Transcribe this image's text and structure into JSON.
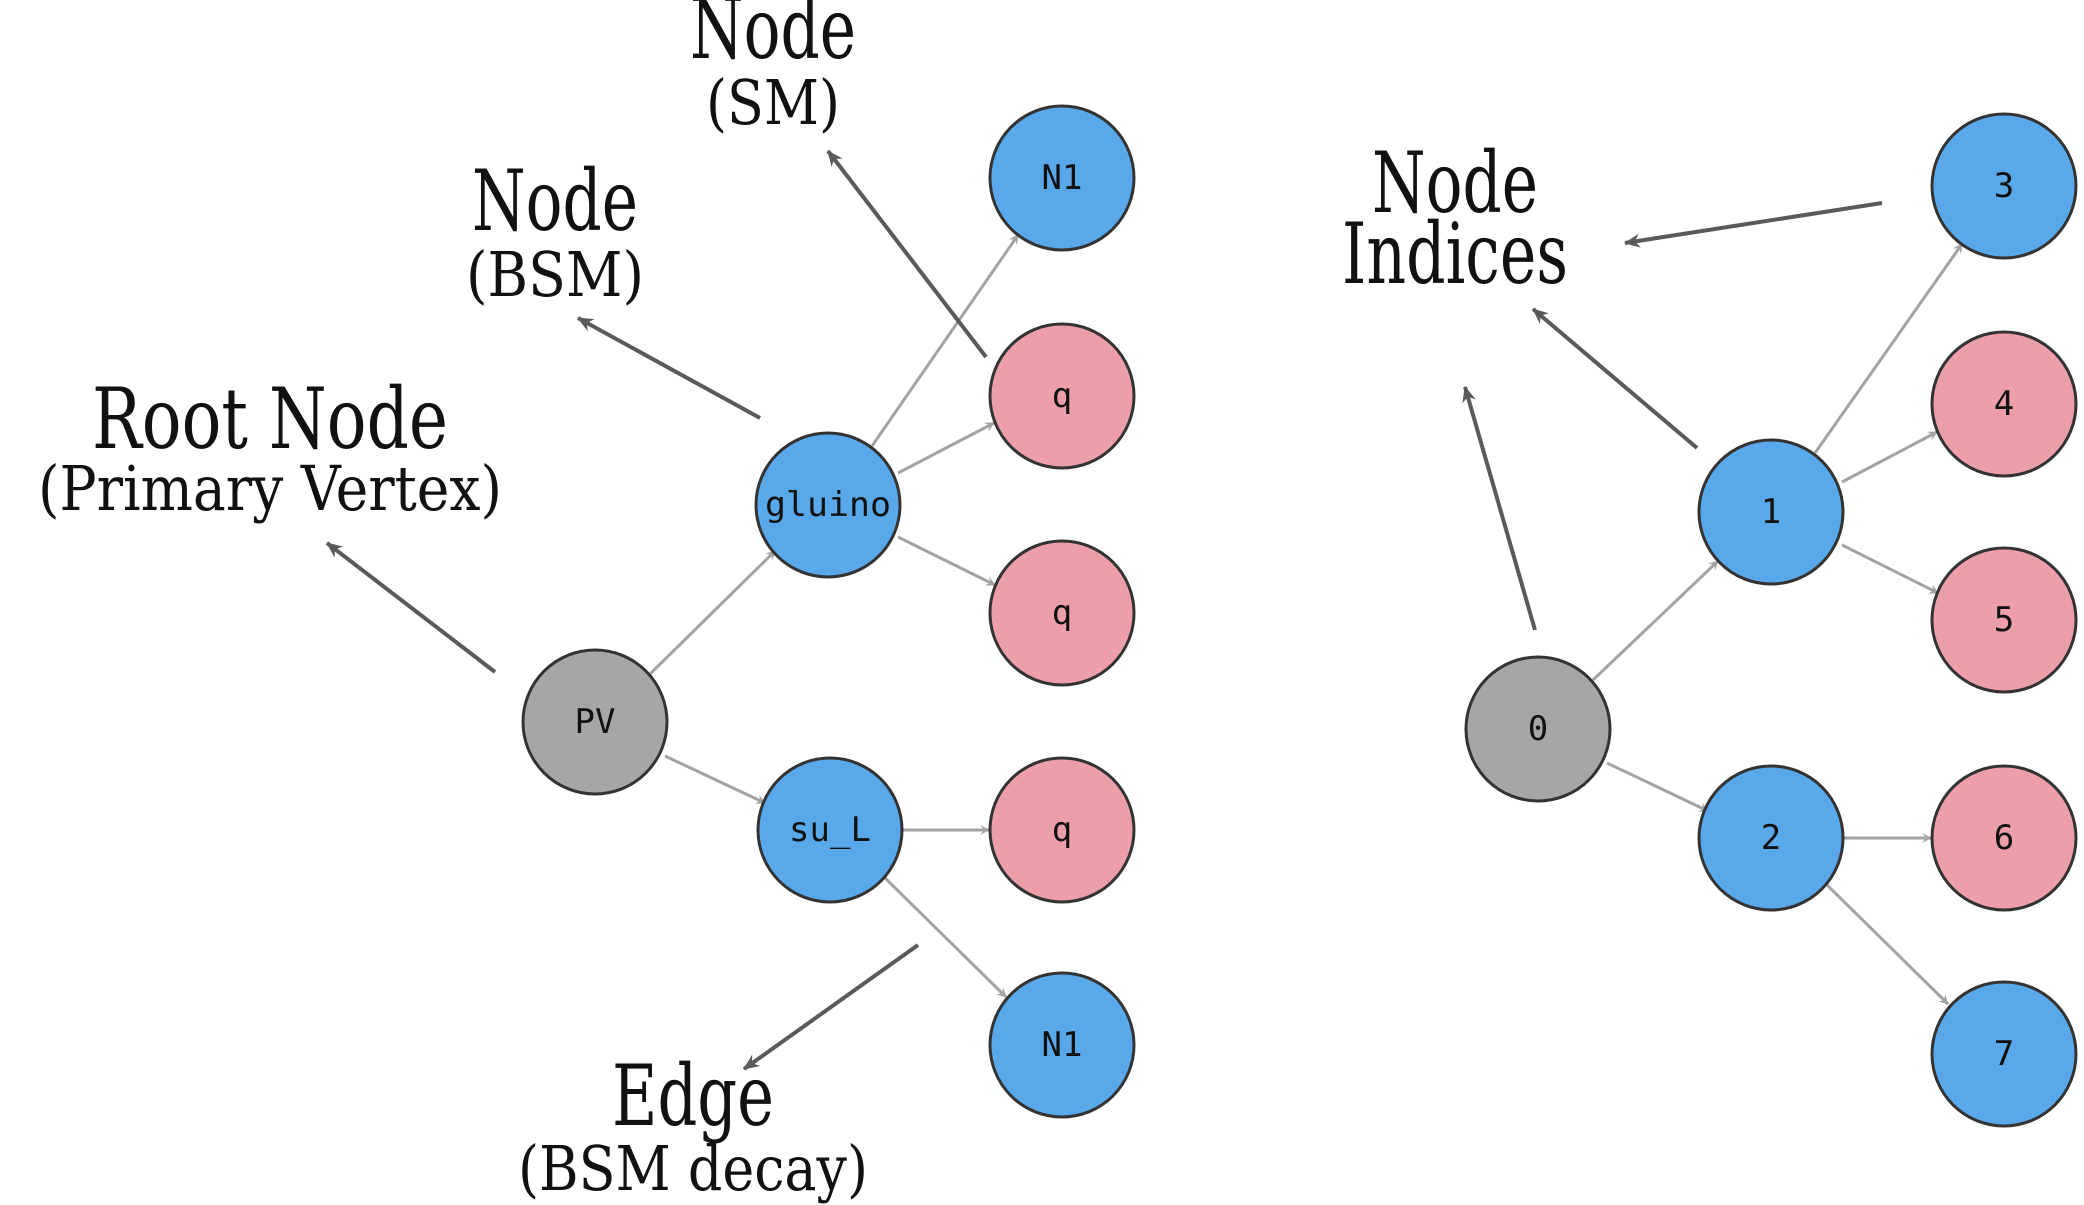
{
  "colors": {
    "root": "#a6a6a6",
    "bsm": "#59a9ea",
    "sm": "#ec9fa9",
    "node_stroke": "#333333",
    "edge": "#a3a3a3",
    "annotation_arrow": "#5a5a5a"
  },
  "left_tree": {
    "nodes": [
      {
        "label": "PV",
        "kind": "root"
      },
      {
        "label": "gluino",
        "kind": "bsm"
      },
      {
        "label": "su_L",
        "kind": "bsm"
      },
      {
        "label": "N1",
        "kind": "bsm"
      },
      {
        "label": "q",
        "kind": "sm"
      },
      {
        "label": "q",
        "kind": "sm"
      },
      {
        "label": "q",
        "kind": "sm"
      },
      {
        "label": "N1",
        "kind": "bsm"
      }
    ],
    "edges": [
      [
        "PV",
        "gluino"
      ],
      [
        "PV",
        "su_L"
      ],
      [
        "gluino",
        "N1"
      ],
      [
        "gluino",
        "q"
      ],
      [
        "gluino",
        "q"
      ],
      [
        "su_L",
        "q"
      ],
      [
        "su_L",
        "N1"
      ]
    ]
  },
  "right_tree": {
    "nodes": [
      {
        "label": "0",
        "kind": "root"
      },
      {
        "label": "1",
        "kind": "bsm"
      },
      {
        "label": "2",
        "kind": "bsm"
      },
      {
        "label": "3",
        "kind": "bsm"
      },
      {
        "label": "4",
        "kind": "sm"
      },
      {
        "label": "5",
        "kind": "sm"
      },
      {
        "label": "6",
        "kind": "sm"
      },
      {
        "label": "7",
        "kind": "bsm"
      }
    ],
    "edges": [
      [
        "0",
        "1"
      ],
      [
        "0",
        "2"
      ],
      [
        "1",
        "3"
      ],
      [
        "1",
        "4"
      ],
      [
        "1",
        "5"
      ],
      [
        "2",
        "6"
      ],
      [
        "2",
        "7"
      ]
    ]
  },
  "annotations": {
    "root_node": {
      "title": "Root Node",
      "subtitle": "(Primary Vertex)"
    },
    "node_bsm": {
      "title": "Node",
      "subtitle": "(BSM)"
    },
    "node_sm": {
      "title": "Node",
      "subtitle": "(SM)"
    },
    "edge": {
      "title": "Edge",
      "subtitle": "(BSM decay)"
    },
    "node_indices": {
      "title": "Node",
      "subtitle": "Indices"
    }
  }
}
